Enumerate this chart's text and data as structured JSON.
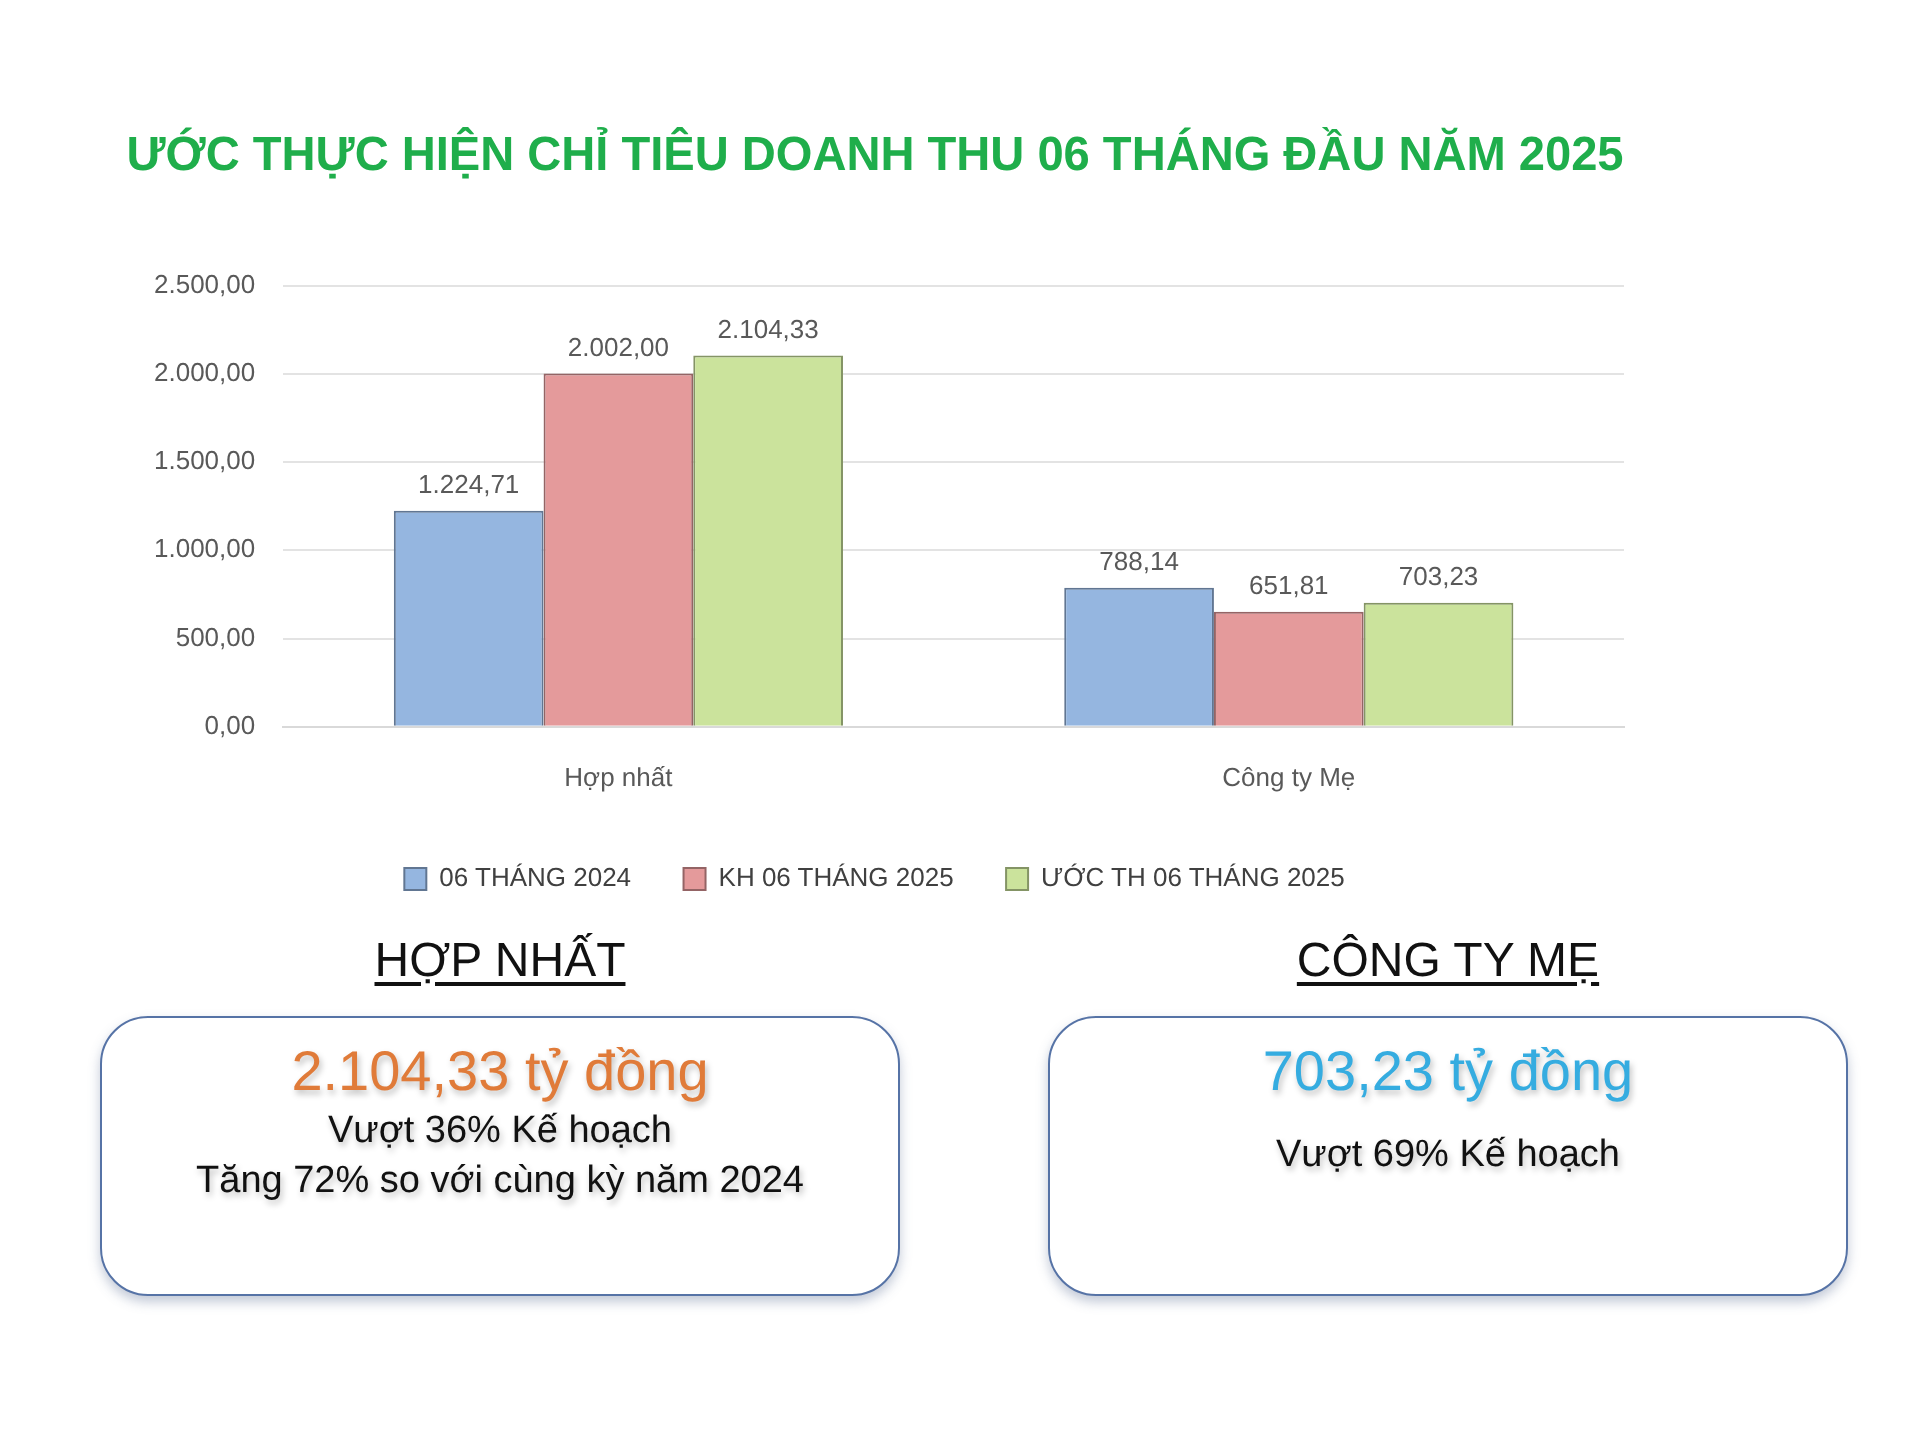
{
  "chart_data": [
    {
      "type": "bar",
      "title": "ƯỚC THỰC HIỆN CHỈ TIÊU DOANH THU 06 THÁNG ĐẦU NĂM 2025",
      "categories": [
        "Hợp nhất",
        "Công ty Mẹ"
      ],
      "series": [
        {
          "name": "06 THÁNG 2024",
          "color": "#95b6e0",
          "values": [
            1224.71,
            788.14
          ],
          "value_labels": [
            "1.224,71",
            "788,14"
          ]
        },
        {
          "name": "KH 06 THÁNG 2025",
          "color": "#e49a9b",
          "values": [
            2002.0,
            651.81
          ],
          "value_labels": [
            "2.002,00",
            "651,81"
          ]
        },
        {
          "name": "ƯỚC TH 06 THÁNG 2025",
          "color": "#cbe39c",
          "values": [
            2104.33,
            703.23
          ],
          "value_labels": [
            "2.104,33",
            "703,23"
          ]
        }
      ],
      "ylim": [
        0,
        2500
      ],
      "yticks": [
        {
          "value": 0,
          "label": "0,00"
        },
        {
          "value": 500,
          "label": "500,00"
        },
        {
          "value": 1000,
          "label": "1.000,00"
        },
        {
          "value": 1500,
          "label": "1.500,00"
        },
        {
          "value": 2000,
          "label": "2.000,00"
        },
        {
          "value": 2500,
          "label": "2.500,00"
        }
      ],
      "grid": "y",
      "legend": "bottom"
    },
    {
      "type": "other",
      "title": "HỢP NHẤT",
      "color": "#e07b39",
      "annotations": [
        "2.104,33 tỷ đồng",
        "Vượt 36% Kế hoạch",
        "Tăng 72% so với cùng kỳ năm 2024"
      ]
    },
    {
      "type": "other",
      "title": "CÔNG TY MẸ",
      "color": "#35ace0",
      "annotations": [
        "703,23 tỷ đồng",
        "Vượt 69% Kế hoạch"
      ]
    }
  ]
}
